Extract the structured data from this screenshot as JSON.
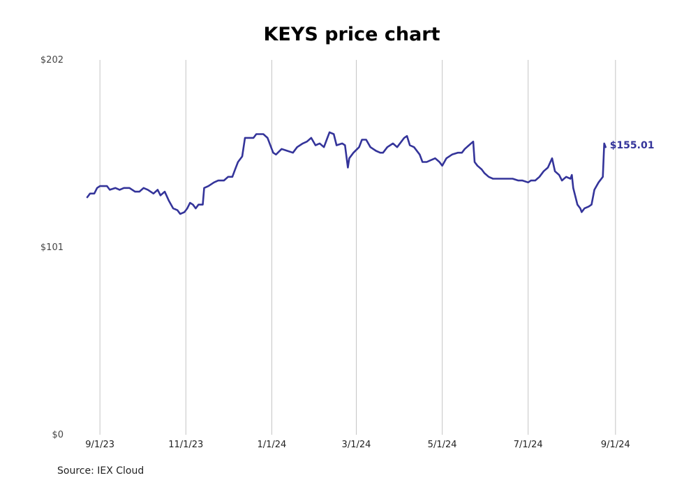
{
  "chart_data": {
    "type": "line",
    "title": "KEYS price chart",
    "xlabel": "",
    "ylabel": "",
    "ylim": [
      0,
      202
    ],
    "y_ticks": [
      {
        "value": 0,
        "label": "$0"
      },
      {
        "value": 101,
        "label": "$101"
      },
      {
        "value": 202,
        "label": "$202"
      }
    ],
    "x_ticks": [
      "9/1/23",
      "11/1/23",
      "1/1/24",
      "3/1/24",
      "5/1/24",
      "7/1/24",
      "9/1/24"
    ],
    "xlim": [
      "2023-08-23",
      "2024-09-10"
    ],
    "grid": "vertical",
    "line_color": "#34349a",
    "end_label": "$155.01",
    "series": [
      {
        "points": [
          [
            "2023-08-23",
            128
          ],
          [
            "2023-08-25",
            130
          ],
          [
            "2023-08-28",
            130
          ],
          [
            "2023-08-30",
            133
          ],
          [
            "2023-09-01",
            134
          ],
          [
            "2023-09-06",
            134
          ],
          [
            "2023-09-08",
            132
          ],
          [
            "2023-09-12",
            133
          ],
          [
            "2023-09-15",
            132
          ],
          [
            "2023-09-18",
            133
          ],
          [
            "2023-09-22",
            133
          ],
          [
            "2023-09-26",
            131
          ],
          [
            "2023-09-29",
            131
          ],
          [
            "2023-10-02",
            133
          ],
          [
            "2023-10-05",
            132
          ],
          [
            "2023-10-09",
            130
          ],
          [
            "2023-10-12",
            132
          ],
          [
            "2023-10-14",
            129
          ],
          [
            "2023-10-17",
            131
          ],
          [
            "2023-10-20",
            126
          ],
          [
            "2023-10-23",
            122
          ],
          [
            "2023-10-26",
            121
          ],
          [
            "2023-10-28",
            119
          ],
          [
            "2023-10-31",
            120
          ],
          [
            "2023-11-02",
            122
          ],
          [
            "2023-11-04",
            125
          ],
          [
            "2023-11-06",
            124
          ],
          [
            "2023-11-08",
            122
          ],
          [
            "2023-11-10",
            124
          ],
          [
            "2023-11-13",
            124
          ],
          [
            "2023-11-14",
            133
          ],
          [
            "2023-11-17",
            134
          ],
          [
            "2023-11-21",
            136
          ],
          [
            "2023-11-24",
            137
          ],
          [
            "2023-11-28",
            137
          ],
          [
            "2023-12-01",
            139
          ],
          [
            "2023-12-04",
            139
          ],
          [
            "2023-12-06",
            143
          ],
          [
            "2023-12-08",
            147
          ],
          [
            "2023-12-11",
            150
          ],
          [
            "2023-12-13",
            160
          ],
          [
            "2023-12-16",
            160
          ],
          [
            "2023-12-19",
            160
          ],
          [
            "2023-12-21",
            162
          ],
          [
            "2023-12-26",
            162
          ],
          [
            "2023-12-29",
            160
          ],
          [
            "2024-01-02",
            152
          ],
          [
            "2024-01-04",
            151
          ],
          [
            "2024-01-08",
            154
          ],
          [
            "2024-01-12",
            153
          ],
          [
            "2024-01-16",
            152
          ],
          [
            "2024-01-19",
            155
          ],
          [
            "2024-01-23",
            157
          ],
          [
            "2024-01-26",
            158
          ],
          [
            "2024-01-29",
            160
          ],
          [
            "2024-02-01",
            156
          ],
          [
            "2024-02-04",
            157
          ],
          [
            "2024-02-07",
            155
          ],
          [
            "2024-02-09",
            159
          ],
          [
            "2024-02-11",
            163
          ],
          [
            "2024-02-14",
            162
          ],
          [
            "2024-02-16",
            156
          ],
          [
            "2024-02-20",
            157
          ],
          [
            "2024-02-22",
            156
          ],
          [
            "2024-02-24",
            144
          ],
          [
            "2024-02-25",
            149
          ],
          [
            "2024-02-28",
            152
          ],
          [
            "2024-03-03",
            155
          ],
          [
            "2024-03-05",
            159
          ],
          [
            "2024-03-08",
            159
          ],
          [
            "2024-03-11",
            155
          ],
          [
            "2024-03-15",
            153
          ],
          [
            "2024-03-18",
            152
          ],
          [
            "2024-03-20",
            152
          ],
          [
            "2024-03-23",
            155
          ],
          [
            "2024-03-27",
            157
          ],
          [
            "2024-03-30",
            155
          ],
          [
            "2024-04-02",
            158
          ],
          [
            "2024-04-04",
            160
          ],
          [
            "2024-04-06",
            161
          ],
          [
            "2024-04-08",
            156
          ],
          [
            "2024-04-11",
            155
          ],
          [
            "2024-04-15",
            151
          ],
          [
            "2024-04-17",
            147
          ],
          [
            "2024-04-20",
            147
          ],
          [
            "2024-04-23",
            148
          ],
          [
            "2024-04-26",
            149
          ],
          [
            "2024-04-29",
            147
          ],
          [
            "2024-05-01",
            145
          ],
          [
            "2024-05-04",
            149
          ],
          [
            "2024-05-08",
            151
          ],
          [
            "2024-05-12",
            152
          ],
          [
            "2024-05-15",
            152
          ],
          [
            "2024-05-17",
            154
          ],
          [
            "2024-05-20",
            156
          ],
          [
            "2024-05-23",
            158
          ],
          [
            "2024-05-24",
            147
          ],
          [
            "2024-05-26",
            145
          ],
          [
            "2024-05-29",
            143
          ],
          [
            "2024-05-31",
            141
          ],
          [
            "2024-06-03",
            139
          ],
          [
            "2024-06-06",
            138
          ],
          [
            "2024-06-10",
            138
          ],
          [
            "2024-06-13",
            138
          ],
          [
            "2024-06-17",
            138
          ],
          [
            "2024-06-20",
            138
          ],
          [
            "2024-06-24",
            137
          ],
          [
            "2024-06-27",
            137
          ],
          [
            "2024-07-01",
            136
          ],
          [
            "2024-07-03",
            137
          ],
          [
            "2024-07-06",
            137
          ],
          [
            "2024-07-09",
            139
          ],
          [
            "2024-07-12",
            142
          ],
          [
            "2024-07-15",
            144
          ],
          [
            "2024-07-18",
            149
          ],
          [
            "2024-07-20",
            142
          ],
          [
            "2024-07-23",
            140
          ],
          [
            "2024-07-25",
            137
          ],
          [
            "2024-07-28",
            139
          ],
          [
            "2024-07-31",
            138
          ],
          [
            "2024-08-01",
            140
          ],
          [
            "2024-08-02",
            133
          ],
          [
            "2024-08-05",
            124
          ],
          [
            "2024-08-07",
            122
          ],
          [
            "2024-08-08",
            120
          ],
          [
            "2024-08-10",
            122
          ],
          [
            "2024-08-13",
            123
          ],
          [
            "2024-08-15",
            124
          ],
          [
            "2024-08-17",
            132
          ],
          [
            "2024-08-20",
            136
          ],
          [
            "2024-08-23",
            139
          ],
          [
            "2024-08-24",
            157
          ],
          [
            "2024-08-25",
            155
          ]
        ]
      }
    ]
  },
  "footer": {
    "source": "Source: IEX Cloud"
  }
}
